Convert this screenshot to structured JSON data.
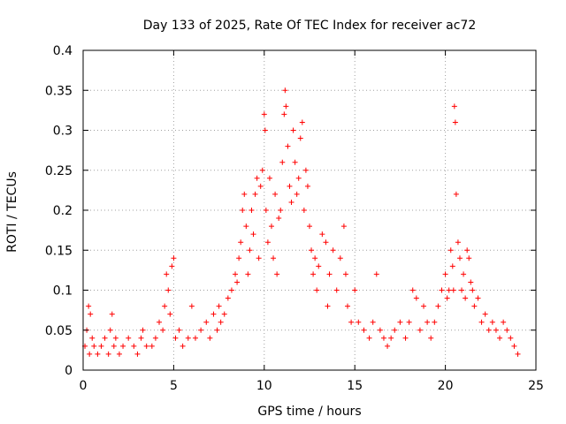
{
  "chart_data": {
    "type": "scatter",
    "title": "Day 133 of 2025, Rate Of TEC Index for receiver ac72",
    "xlabel": "GPS time / hours",
    "ylabel": "ROTI / TECUs",
    "xlim": [
      0,
      25
    ],
    "ylim": [
      0,
      0.4
    ],
    "xticks": [
      0,
      5,
      10,
      15,
      20,
      25
    ],
    "yticks": [
      0,
      0.05,
      0.1,
      0.15,
      0.2,
      0.25,
      0.3,
      0.35,
      0.4
    ],
    "xtick_labels": [
      "0",
      "5",
      "10",
      "15",
      "20",
      "25"
    ],
    "ytick_labels": [
      "0",
      "0.05",
      "0.1",
      "0.15",
      "0.2",
      "0.25",
      "0.3",
      "0.35",
      "0.4"
    ],
    "grid": true,
    "legend": "none",
    "marker": "+",
    "color": "#ff0000",
    "series": [
      {
        "x": [
          0.1,
          0.2,
          0.3,
          0.35,
          0.4,
          0.5,
          0.6,
          0.8,
          1.0,
          1.2,
          1.4,
          1.5,
          1.6,
          1.7,
          1.8,
          2.0,
          2.2,
          2.5,
          2.8,
          3.0,
          3.2,
          3.3,
          3.5,
          3.8,
          4.0,
          4.2,
          4.4,
          4.5,
          4.6,
          4.7,
          4.8,
          4.9,
          5.0,
          5.1,
          5.3,
          5.5,
          5.8,
          6.0,
          6.2,
          6.5,
          6.8,
          7.0,
          7.2,
          7.4,
          7.5,
          7.6,
          7.8,
          8.0,
          8.2,
          8.4,
          8.5,
          8.6,
          8.7,
          8.8,
          8.9,
          9.0,
          9.1,
          9.2,
          9.3,
          9.4,
          9.5,
          9.6,
          9.7,
          9.8,
          9.9,
          10.0,
          10.05,
          10.1,
          10.2,
          10.3,
          10.4,
          10.5,
          10.6,
          10.7,
          10.8,
          10.9,
          11.0,
          11.1,
          11.15,
          11.2,
          11.3,
          11.4,
          11.5,
          11.6,
          11.7,
          11.8,
          11.9,
          12.0,
          12.1,
          12.2,
          12.3,
          12.4,
          12.5,
          12.6,
          12.7,
          12.8,
          12.9,
          13.0,
          13.2,
          13.4,
          13.5,
          13.6,
          13.8,
          14.0,
          14.2,
          14.4,
          14.5,
          14.6,
          14.8,
          15.0,
          15.2,
          15.5,
          15.8,
          16.0,
          16.2,
          16.4,
          16.6,
          16.8,
          17.0,
          17.2,
          17.5,
          17.8,
          18.0,
          18.2,
          18.4,
          18.6,
          18.8,
          19.0,
          19.2,
          19.4,
          19.6,
          19.8,
          20.0,
          20.1,
          20.2,
          20.3,
          20.4,
          20.45,
          20.5,
          20.55,
          20.6,
          20.7,
          20.8,
          20.9,
          21.0,
          21.1,
          21.2,
          21.3,
          21.4,
          21.5,
          21.6,
          21.8,
          22.0,
          22.2,
          22.4,
          22.6,
          22.8,
          23.0,
          23.2,
          23.4,
          23.6,
          23.8,
          24.0
        ],
        "y": [
          0.03,
          0.05,
          0.08,
          0.02,
          0.07,
          0.04,
          0.03,
          0.02,
          0.03,
          0.04,
          0.02,
          0.05,
          0.07,
          0.03,
          0.04,
          0.02,
          0.03,
          0.04,
          0.03,
          0.02,
          0.04,
          0.05,
          0.03,
          0.03,
          0.04,
          0.06,
          0.05,
          0.08,
          0.12,
          0.1,
          0.07,
          0.13,
          0.14,
          0.04,
          0.05,
          0.03,
          0.04,
          0.08,
          0.04,
          0.05,
          0.06,
          0.04,
          0.07,
          0.05,
          0.08,
          0.06,
          0.07,
          0.09,
          0.1,
          0.12,
          0.11,
          0.14,
          0.16,
          0.2,
          0.22,
          0.18,
          0.12,
          0.15,
          0.2,
          0.17,
          0.22,
          0.24,
          0.14,
          0.23,
          0.25,
          0.32,
          0.3,
          0.2,
          0.16,
          0.24,
          0.18,
          0.14,
          0.22,
          0.12,
          0.19,
          0.2,
          0.26,
          0.32,
          0.35,
          0.33,
          0.28,
          0.23,
          0.21,
          0.3,
          0.26,
          0.22,
          0.24,
          0.29,
          0.31,
          0.2,
          0.25,
          0.23,
          0.18,
          0.15,
          0.12,
          0.14,
          0.1,
          0.13,
          0.17,
          0.16,
          0.08,
          0.12,
          0.15,
          0.1,
          0.14,
          0.18,
          0.12,
          0.08,
          0.06,
          0.1,
          0.06,
          0.05,
          0.04,
          0.06,
          0.12,
          0.05,
          0.04,
          0.03,
          0.04,
          0.05,
          0.06,
          0.04,
          0.06,
          0.1,
          0.09,
          0.05,
          0.08,
          0.06,
          0.04,
          0.06,
          0.08,
          0.1,
          0.12,
          0.09,
          0.1,
          0.15,
          0.13,
          0.1,
          0.33,
          0.31,
          0.22,
          0.16,
          0.14,
          0.1,
          0.12,
          0.09,
          0.15,
          0.14,
          0.11,
          0.1,
          0.08,
          0.09,
          0.06,
          0.07,
          0.05,
          0.06,
          0.05,
          0.04,
          0.06,
          0.05,
          0.04,
          0.03,
          0.02
        ]
      }
    ]
  }
}
